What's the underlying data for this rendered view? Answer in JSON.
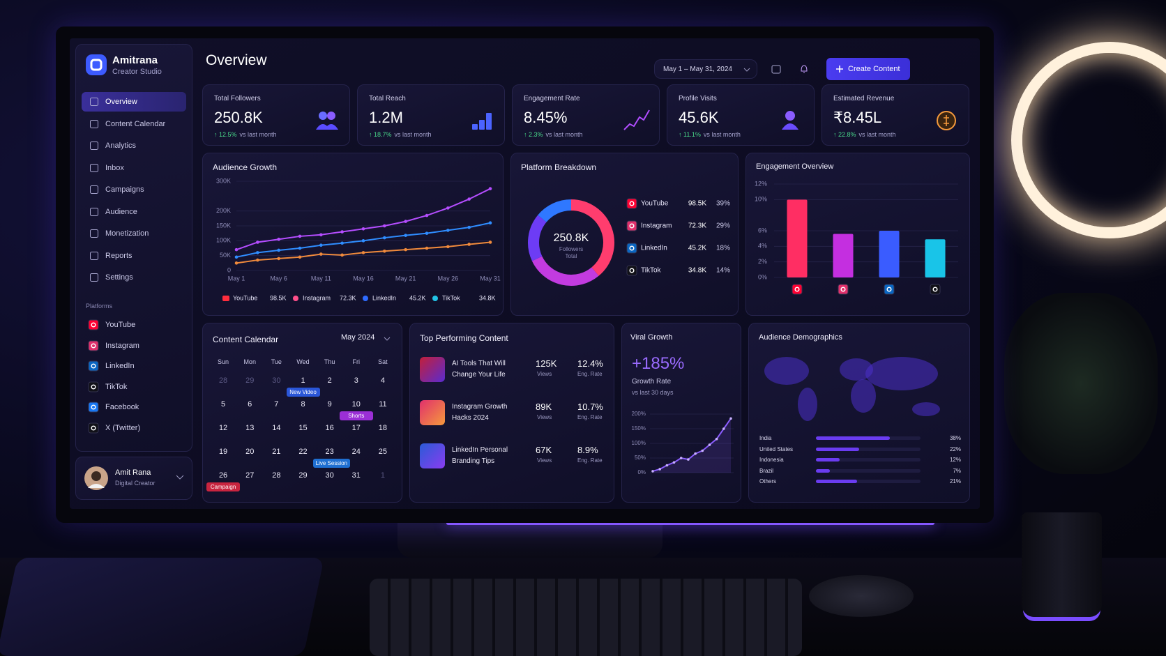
{
  "brand": {
    "name": "Amitrana",
    "subtitle": "Creator Studio"
  },
  "nav": [
    "Overview",
    "Content Calendar",
    "Analytics",
    "Inbox",
    "Campaigns",
    "Audience",
    "Monetization",
    "Reports",
    "Settings"
  ],
  "platforms": {
    "heading": "Platforms",
    "items": [
      "YouTube",
      "Instagram",
      "LinkedIn",
      "TikTok",
      "Facebook",
      "X (Twitter)"
    ]
  },
  "user": {
    "name": "Amit Rana",
    "role": "Digital Creator"
  },
  "header": {
    "title": "Overview",
    "date_range": "May 1 – May 31, 2024",
    "button": "Create Content"
  },
  "kpis": [
    {
      "label": "Total Followers",
      "value": "250.8K",
      "change": "↑ 12.5%",
      "note": "vs last month"
    },
    {
      "label": "Total Reach",
      "value": "1.2M",
      "change": "↑ 18.7%",
      "note": "vs last month"
    },
    {
      "label": "Engagement Rate",
      "value": "8.45%",
      "change": "↑ 2.3%",
      "note": "vs last month"
    },
    {
      "label": "Profile Visits",
      "value": "45.6K",
      "change": "↑ 11.1%",
      "note": "vs last month"
    },
    {
      "label": "Estimated Revenue",
      "value": "₹8.45L",
      "change": "↑ 22.8%",
      "note": "vs last month"
    }
  ],
  "audience_growth": {
    "type": "line",
    "title": "Audience Growth",
    "x": [
      "May 1",
      null,
      "May 6",
      null,
      "May 11",
      null,
      "May 16",
      null,
      "May 21",
      null,
      "May 26",
      null,
      "May 31"
    ],
    "ylim": [
      0,
      300
    ],
    "yticks": [
      0,
      {
        "value": 50,
        "label": "50K"
      },
      {
        "value": 100,
        "label": "100K"
      },
      {
        "value": 150,
        "label": "150K"
      },
      {
        "value": 200,
        "label": "200K"
      },
      {
        "value": 300,
        "label": "300K"
      }
    ],
    "series": [
      {
        "color": "#b54dff",
        "values": [
          70,
          95,
          105,
          115,
          120,
          130,
          140,
          150,
          165,
          185,
          210,
          240,
          275
        ]
      },
      {
        "color": "#2f8dff",
        "values": [
          45,
          60,
          68,
          75,
          85,
          92,
          100,
          110,
          118,
          125,
          135,
          145,
          160
        ]
      },
      {
        "color": "#f08a3c",
        "values": [
          25,
          35,
          40,
          45,
          55,
          52,
          60,
          65,
          70,
          75,
          80,
          88,
          95
        ]
      }
    ],
    "legend": [
      {
        "name": "YouTube",
        "value": "98.5K",
        "color": "#ff2d3d"
      },
      {
        "name": "Instagram",
        "value": "72.3K",
        "color": "#ff4f8b"
      },
      {
        "name": "LinkedIn",
        "value": "45.2K",
        "color": "#2e6bff"
      },
      {
        "name": "TikTok",
        "value": "34.8K",
        "color": "#22c3e6"
      }
    ]
  },
  "platform_breakdown": {
    "type": "pie",
    "title": "Platform Breakdown",
    "center_value": "250.8K",
    "center_label": "Followers",
    "center_sub": "Total",
    "categories": [
      "YouTube",
      "Instagram",
      "LinkedIn",
      "TikTok"
    ],
    "followers": [
      "98.5K",
      "72.3K",
      "45.2K",
      "34.8K"
    ],
    "values": [
      39,
      29,
      18,
      14
    ],
    "value_labels": [
      "39%",
      "29%",
      "18%",
      "14%"
    ],
    "colors": [
      "#ff3d6e",
      "#c23be0",
      "#6d3cf5",
      "#2f78ff"
    ]
  },
  "engagement_overview": {
    "type": "bar",
    "title": "Engagement Overview",
    "categories": [
      null,
      null,
      null,
      null
    ],
    "values": [
      10,
      5.6,
      6,
      4.9
    ],
    "colors": [
      "#ff2e63",
      "#c42fe0",
      "#3a5cff",
      "#19c4e8"
    ],
    "ylim": [
      0,
      12
    ],
    "yticks": [
      {
        "value": 0,
        "label": "0%"
      },
      {
        "value": 2,
        "label": "2%"
      },
      {
        "value": 4,
        "label": "4%"
      },
      {
        "value": 6,
        "label": "6%"
      },
      {
        "value": 10,
        "label": "10%"
      },
      {
        "value": 12,
        "label": "12%"
      }
    ]
  },
  "calendar": {
    "title": "Content Calendar",
    "month": "May 2024",
    "weekdays": [
      "Sun",
      "Mon",
      "Tue",
      "Wed",
      "Thu",
      "Fri",
      "Sat"
    ],
    "weeks": [
      [
        {
          "date": 28
        },
        {
          "date": 29
        },
        {
          "date": 30
        },
        {
          "date": 1,
          "event": "New Video"
        },
        {
          "date": 2
        },
        {
          "date": 3
        },
        {
          "date": 4
        }
      ],
      [
        {
          "date": 5
        },
        {
          "date": 6
        },
        {
          "date": 7
        },
        {
          "date": 8
        },
        {
          "date": 9
        },
        {
          "date": 10,
          "event": "Shorts"
        },
        {
          "date": 11
        }
      ],
      [
        {
          "date": 12
        },
        {
          "date": 13
        },
        {
          "date": 14
        },
        {
          "date": 15
        },
        {
          "date": 16
        },
        {
          "date": 17
        },
        {
          "date": 18
        }
      ],
      [
        {
          "date": 19
        },
        {
          "date": 20
        },
        {
          "date": 21
        },
        {
          "date": 22
        },
        {
          "date": 23,
          "event": "Live Session"
        },
        {
          "date": 24
        },
        {
          "date": 25
        }
      ],
      [
        {
          "date": 26,
          "event": "Campaign"
        },
        {
          "date": 27
        },
        {
          "date": 28
        },
        {
          "date": 29
        },
        {
          "date": 30
        },
        {
          "date": 31
        },
        {
          "date": 1
        }
      ]
    ]
  },
  "top_content": {
    "title": "Top Performing Content",
    "items": [
      {
        "title": "AI Tools That Will Change Your Life",
        "views": "125K",
        "views_label": "Views",
        "rate": "12.4%",
        "rate_label": "Eng. Rate"
      },
      {
        "title": "Instagram Growth Hacks 2024",
        "views": "89K",
        "views_label": "Views",
        "rate": "10.7%",
        "rate_label": "Eng. Rate"
      },
      {
        "title": "LinkedIn Personal Branding Tips",
        "views": "67K",
        "views_label": "Views",
        "rate": "8.9%",
        "rate_label": "Eng. Rate"
      }
    ]
  },
  "viral_growth": {
    "type": "line",
    "title": "Viral Growth",
    "headline": "+185%",
    "label": "Growth Rate",
    "note": "vs last 30 days",
    "x": [
      null,
      null,
      null,
      null,
      null,
      null,
      null,
      null,
      null,
      null,
      null,
      null
    ],
    "values": [
      5,
      12,
      25,
      35,
      50,
      45,
      65,
      75,
      95,
      115,
      150,
      185
    ],
    "color": "#8b5cff",
    "ylim": [
      0,
      200
    ],
    "yticks": [
      {
        "value": 0,
        "label": "0%"
      },
      {
        "value": 50,
        "label": "50%"
      },
      {
        "value": 100,
        "label": "100%"
      },
      {
        "value": 150,
        "label": "150%"
      },
      {
        "value": 200,
        "label": "200%"
      }
    ]
  },
  "demographics": {
    "type": "bar",
    "title": "Audience Demographics",
    "categories": [
      "India",
      "United States",
      "Indonesia",
      "Brazil",
      "Others"
    ],
    "values": [
      38,
      22,
      12,
      7,
      21
    ],
    "value_labels": [
      "38%",
      "22%",
      "12%",
      "7%",
      "21%"
    ],
    "color": "#6a3cf0"
  }
}
